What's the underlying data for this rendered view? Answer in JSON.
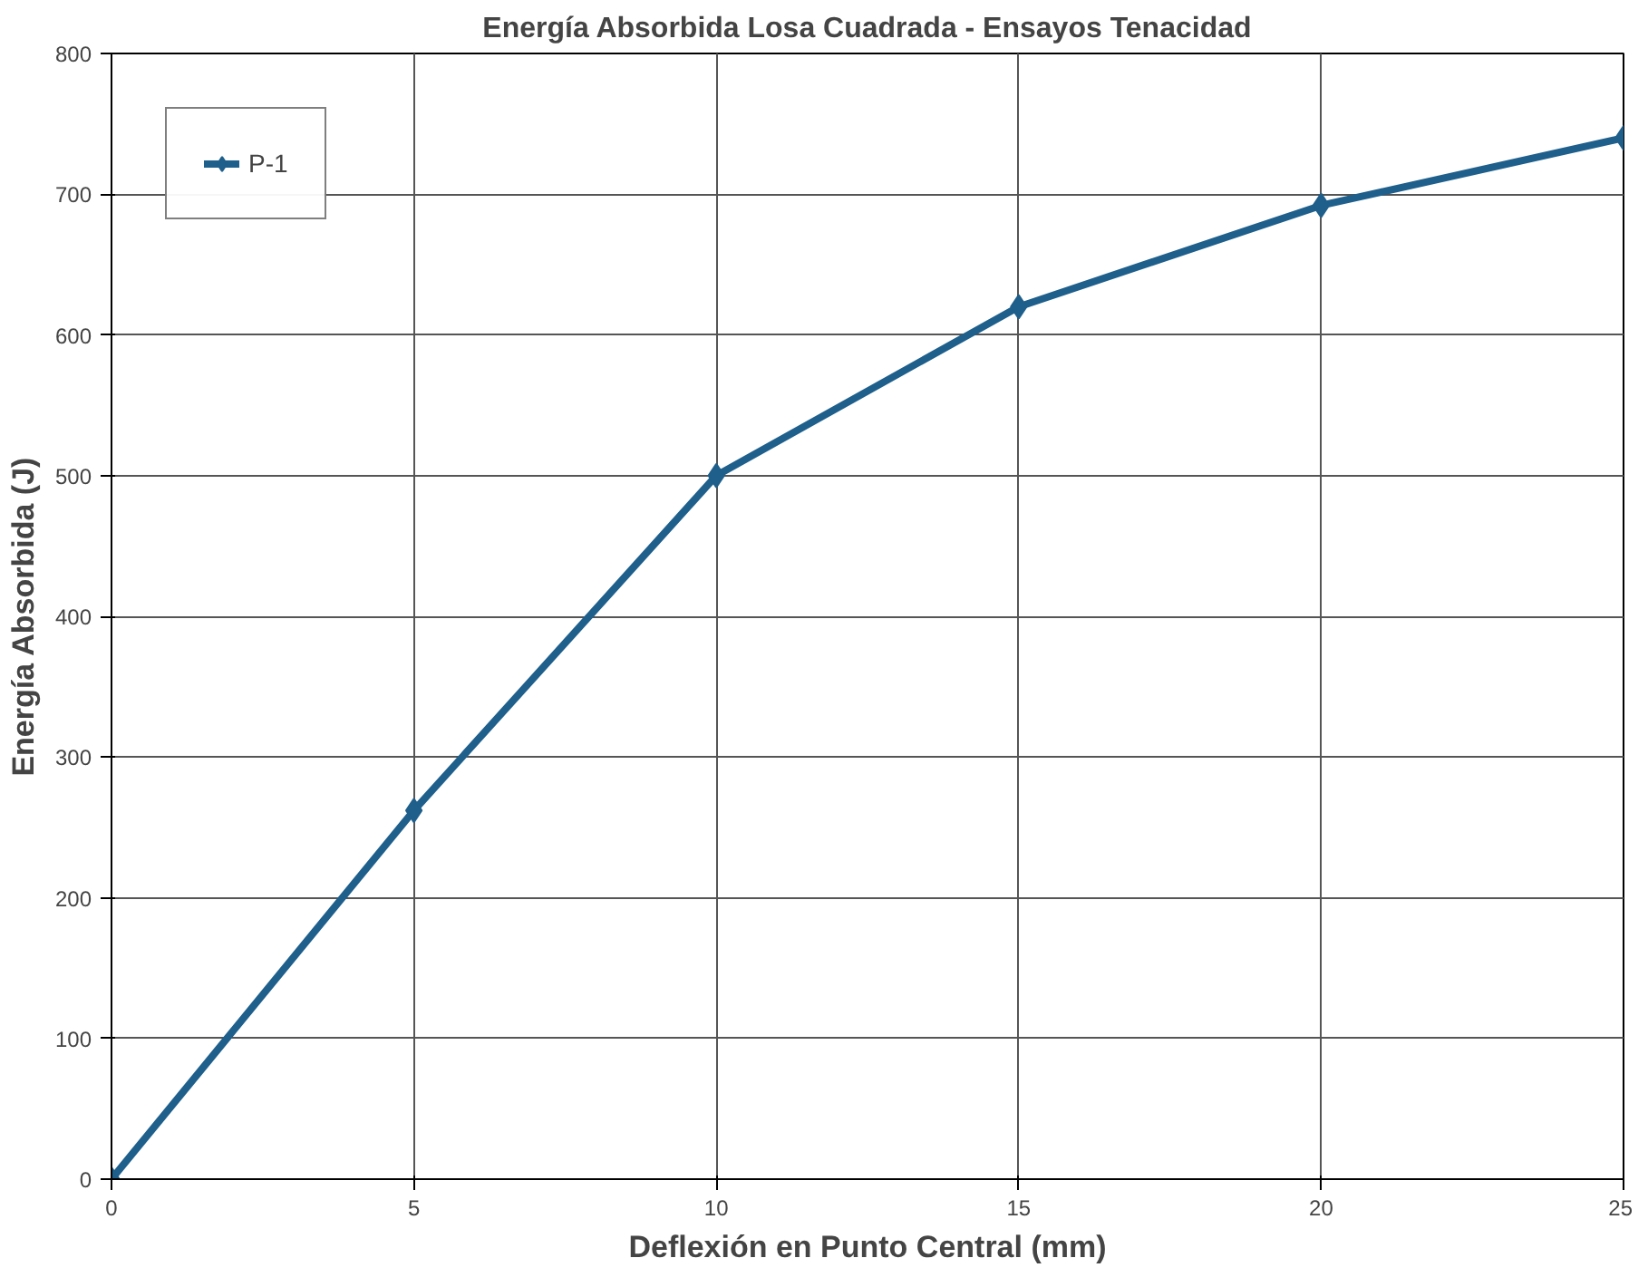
{
  "chart_data": {
    "type": "line",
    "title": "Energía Absorbida Losa Cuadrada - Ensayos Tenacidad",
    "xlabel": "Deflexión en Punto Central (mm)",
    "ylabel": "Energía Absorbida (J)",
    "x": [
      0,
      5,
      10,
      15,
      20,
      25
    ],
    "series": [
      {
        "name": "P-1",
        "color": "#1f5f8b",
        "values": [
          0,
          262,
          500,
          620,
          692,
          740
        ]
      }
    ],
    "xlim": [
      0,
      25
    ],
    "ylim": [
      0,
      800
    ],
    "xticks": [
      0,
      5,
      10,
      15,
      20,
      25
    ],
    "yticks": [
      0,
      100,
      200,
      300,
      400,
      500,
      600,
      700,
      800
    ],
    "grid": true,
    "legend": "top left",
    "marker": "diamond",
    "line_style": "solid"
  }
}
